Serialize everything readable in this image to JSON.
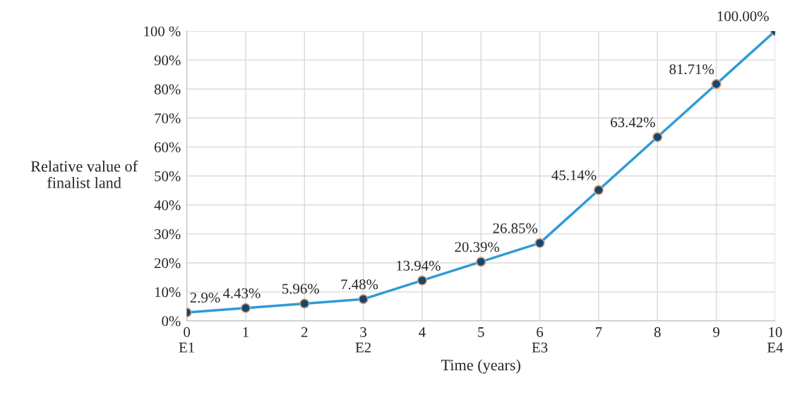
{
  "chart_data": {
    "type": "line",
    "xlabel": "Time (years)",
    "ylabel": "Relative value of\nfinalist land",
    "x": [
      0,
      1,
      2,
      3,
      4,
      5,
      6,
      7,
      8,
      9,
      10
    ],
    "series": [
      {
        "color": "#2e9bd6",
        "values": [
          2.9,
          4.43,
          5.96,
          7.48,
          13.94,
          20.39,
          26.85,
          45.14,
          63.42,
          81.71,
          100.0
        ],
        "value_labels": [
          "2.9%",
          "4.43%",
          "5.96%",
          "7.48%",
          "13.94%",
          "20.39%",
          "26.85%",
          "45.14%",
          "63.42%",
          "81.71%",
          "100.00%"
        ]
      }
    ],
    "xlim": [
      0,
      10
    ],
    "ylim": [
      0,
      100
    ],
    "xticks": [
      {
        "value": 0,
        "label": "0\nE1"
      },
      1,
      2,
      {
        "value": 3,
        "label": "3\nE2"
      },
      4,
      5,
      {
        "value": 6,
        "label": "6\nE3"
      },
      7,
      8,
      9,
      {
        "value": 10,
        "label": "10\nE4"
      }
    ],
    "yticks": [
      {
        "value": 0,
        "label": "0%"
      },
      {
        "value": 10,
        "label": "10%"
      },
      {
        "value": 20,
        "label": "20%"
      },
      {
        "value": 30,
        "label": "30%"
      },
      {
        "value": 40,
        "label": "40%"
      },
      {
        "value": 50,
        "label": "50%"
      },
      {
        "value": 60,
        "label": "60%"
      },
      {
        "value": 70,
        "label": "70%"
      },
      {
        "value": 80,
        "label": "80%"
      },
      {
        "value": 90,
        "label": "90%"
      },
      {
        "value": 100,
        "label": "100 %"
      }
    ],
    "grid": true,
    "marker": "circle",
    "line_style": "solid"
  }
}
